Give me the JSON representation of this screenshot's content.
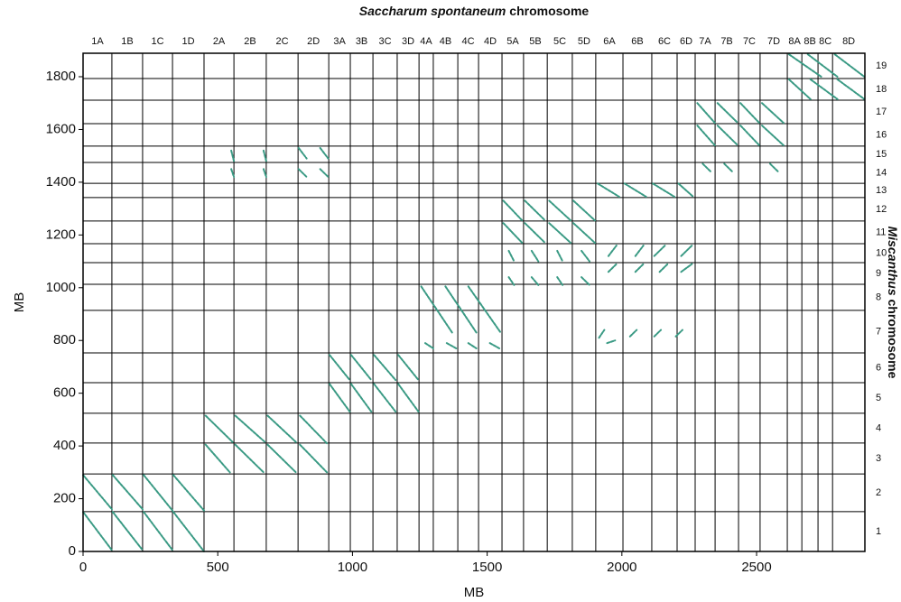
{
  "chart_data": {
    "type": "dotplot",
    "title": [
      "Saccharum spontaneum",
      "chromosome"
    ],
    "right_title": [
      "Miscanthus",
      "chromosome"
    ],
    "xlabel": "MB",
    "ylabel": "MB",
    "xlim": [
      0,
      2902
    ],
    "ylim": [
      0,
      1889
    ],
    "xticks": [
      0,
      500,
      1000,
      1500,
      2000,
      2500
    ],
    "yticks": [
      0,
      200,
      400,
      600,
      800,
      1000,
      1200,
      1400,
      1600,
      1800
    ],
    "color": "#3a9a84",
    "top_categories": [
      "1A",
      "1B",
      "1C",
      "1D",
      "2A",
      "2B",
      "2C",
      "2D",
      "3A",
      "3B",
      "3C",
      "3D",
      "4A",
      "4B",
      "4C",
      "4D",
      "5A",
      "5B",
      "5C",
      "5D",
      "6A",
      "6B",
      "6C",
      "6D",
      "7A",
      "7B",
      "7C",
      "7D",
      "8A",
      "8B",
      "8C",
      "8D"
    ],
    "top_boundaries": [
      0,
      107,
      221,
      332,
      449,
      560,
      680,
      798,
      912,
      992,
      1076,
      1166,
      1247,
      1300,
      1391,
      1468,
      1555,
      1635,
      1723,
      1816,
      1903,
      2004,
      2111,
      2205,
      2272,
      2346,
      2433,
      2513,
      2614,
      2668,
      2728,
      2782,
      2902
    ],
    "right_categories": [
      "1",
      "2",
      "3",
      "4",
      "5",
      "6",
      "7",
      "8",
      "9",
      "10",
      "11",
      "12",
      "13",
      "14",
      "15",
      "16",
      "17",
      "18",
      "19"
    ],
    "right_boundaries": [
      0,
      151,
      294,
      411,
      524,
      640,
      753,
      914,
      1013,
      1095,
      1167,
      1253,
      1342,
      1396,
      1475,
      1537,
      1622,
      1711,
      1793,
      1889
    ],
    "segments": [
      {
        "x": [
          0,
          107
        ],
        "y": [
          290,
          160
        ]
      },
      {
        "x": [
          0,
          107
        ],
        "y": [
          150,
          5
        ]
      },
      {
        "x": [
          110,
          221
        ],
        "y": [
          290,
          160
        ]
      },
      {
        "x": [
          110,
          221
        ],
        "y": [
          150,
          5
        ]
      },
      {
        "x": [
          225,
          332
        ],
        "y": [
          290,
          155
        ]
      },
      {
        "x": [
          225,
          332
        ],
        "y": [
          150,
          5
        ]
      },
      {
        "x": [
          335,
          449
        ],
        "y": [
          290,
          155
        ]
      },
      {
        "x": [
          335,
          449
        ],
        "y": [
          150,
          0
        ]
      },
      {
        "x": [
          455,
          555
        ],
        "y": [
          515,
          415
        ]
      },
      {
        "x": [
          455,
          545
        ],
        "y": [
          405,
          300
        ]
      },
      {
        "x": [
          565,
          675
        ],
        "y": [
          515,
          415
        ]
      },
      {
        "x": [
          565,
          670
        ],
        "y": [
          405,
          300
        ]
      },
      {
        "x": [
          685,
          790
        ],
        "y": [
          515,
          415
        ]
      },
      {
        "x": [
          685,
          790
        ],
        "y": [
          405,
          300
        ]
      },
      {
        "x": [
          805,
          905
        ],
        "y": [
          515,
          410
        ]
      },
      {
        "x": [
          805,
          905
        ],
        "y": [
          405,
          300
        ]
      },
      {
        "x": [
          915,
          990
        ],
        "y": [
          745,
          650
        ]
      },
      {
        "x": [
          915,
          990
        ],
        "y": [
          635,
          530
        ]
      },
      {
        "x": [
          995,
          1070
        ],
        "y": [
          745,
          650
        ]
      },
      {
        "x": [
          995,
          1070
        ],
        "y": [
          635,
          530
        ]
      },
      {
        "x": [
          1080,
          1160
        ],
        "y": [
          745,
          650
        ]
      },
      {
        "x": [
          1080,
          1160
        ],
        "y": [
          635,
          530
        ]
      },
      {
        "x": [
          1170,
          1245
        ],
        "y": [
          745,
          650
        ]
      },
      {
        "x": [
          1170,
          1245
        ],
        "y": [
          635,
          530
        ]
      },
      {
        "x": [
          1255,
          1370
        ],
        "y": [
          1005,
          830
        ]
      },
      {
        "x": [
          1345,
          1460
        ],
        "y": [
          1005,
          830
        ]
      },
      {
        "x": [
          1430,
          1550
        ],
        "y": [
          1005,
          830
        ]
      },
      {
        "x": [
          1270,
          1300
        ],
        "y": [
          790,
          770
        ]
      },
      {
        "x": [
          1350,
          1385
        ],
        "y": [
          790,
          770
        ]
      },
      {
        "x": [
          1430,
          1460
        ],
        "y": [
          790,
          770
        ]
      },
      {
        "x": [
          1510,
          1545
        ],
        "y": [
          790,
          770
        ]
      },
      {
        "x": [
          1560,
          1630
        ],
        "y": [
          1330,
          1255
        ]
      },
      {
        "x": [
          1560,
          1630
        ],
        "y": [
          1245,
          1170
        ]
      },
      {
        "x": [
          1640,
          1715
        ],
        "y": [
          1330,
          1255
        ]
      },
      {
        "x": [
          1640,
          1715
        ],
        "y": [
          1245,
          1170
        ]
      },
      {
        "x": [
          1730,
          1810
        ],
        "y": [
          1330,
          1255
        ]
      },
      {
        "x": [
          1730,
          1810
        ],
        "y": [
          1245,
          1170
        ]
      },
      {
        "x": [
          1820,
          1900
        ],
        "y": [
          1330,
          1255
        ]
      },
      {
        "x": [
          1820,
          1900
        ],
        "y": [
          1245,
          1170
        ]
      },
      {
        "x": [
          1580,
          1600
        ],
        "y": [
          1140,
          1100
        ]
      },
      {
        "x": [
          1580,
          1600
        ],
        "y": [
          1040,
          1010
        ]
      },
      {
        "x": [
          1665,
          1690
        ],
        "y": [
          1140,
          1100
        ]
      },
      {
        "x": [
          1665,
          1690
        ],
        "y": [
          1040,
          1010
        ]
      },
      {
        "x": [
          1760,
          1780
        ],
        "y": [
          1140,
          1100
        ]
      },
      {
        "x": [
          1760,
          1780
        ],
        "y": [
          1040,
          1010
        ]
      },
      {
        "x": [
          1850,
          1880
        ],
        "y": [
          1140,
          1100
        ]
      },
      {
        "x": [
          1850,
          1880
        ],
        "y": [
          1040,
          1010
        ]
      },
      {
        "x": [
          1910,
          1990
        ],
        "y": [
          1395,
          1345
        ]
      },
      {
        "x": [
          2010,
          2090
        ],
        "y": [
          1395,
          1345
        ]
      },
      {
        "x": [
          2115,
          2195
        ],
        "y": [
          1395,
          1345
        ]
      },
      {
        "x": [
          2210,
          2265
        ],
        "y": [
          1395,
          1345
        ]
      },
      {
        "x": [
          1950,
          1980
        ],
        "y": [
          1120,
          1160
        ]
      },
      {
        "x": [
          2050,
          2080
        ],
        "y": [
          1120,
          1160
        ]
      },
      {
        "x": [
          2120,
          2160
        ],
        "y": [
          1120,
          1160
        ]
      },
      {
        "x": [
          2220,
          2260
        ],
        "y": [
          1120,
          1160
        ]
      },
      {
        "x": [
          1950,
          1980
        ],
        "y": [
          1060,
          1090
        ]
      },
      {
        "x": [
          2050,
          2080
        ],
        "y": [
          1060,
          1090
        ]
      },
      {
        "x": [
          2140,
          2170
        ],
        "y": [
          1060,
          1090
        ]
      },
      {
        "x": [
          2220,
          2260
        ],
        "y": [
          1060,
          1090
        ]
      },
      {
        "x": [
          1915,
          1935
        ],
        "y": [
          810,
          840
        ]
      },
      {
        "x": [
          1945,
          1975
        ],
        "y": [
          790,
          800
        ]
      },
      {
        "x": [
          2030,
          2055
        ],
        "y": [
          815,
          840
        ]
      },
      {
        "x": [
          2120,
          2145
        ],
        "y": [
          815,
          840
        ]
      },
      {
        "x": [
          2200,
          2225
        ],
        "y": [
          815,
          840
        ]
      },
      {
        "x": [
          2280,
          2345
        ],
        "y": [
          1700,
          1625
        ]
      },
      {
        "x": [
          2280,
          2345
        ],
        "y": [
          1615,
          1540
        ]
      },
      {
        "x": [
          2355,
          2430
        ],
        "y": [
          1700,
          1625
        ]
      },
      {
        "x": [
          2355,
          2430
        ],
        "y": [
          1615,
          1540
        ]
      },
      {
        "x": [
          2440,
          2510
        ],
        "y": [
          1700,
          1625
        ]
      },
      {
        "x": [
          2440,
          2510
        ],
        "y": [
          1615,
          1540
        ]
      },
      {
        "x": [
          2520,
          2600
        ],
        "y": [
          1700,
          1625
        ]
      },
      {
        "x": [
          2520,
          2600
        ],
        "y": [
          1615,
          1540
        ]
      },
      {
        "x": [
          2300,
          2330
        ],
        "y": [
          1470,
          1440
        ]
      },
      {
        "x": [
          2380,
          2410
        ],
        "y": [
          1470,
          1440
        ]
      },
      {
        "x": [
          2550,
          2580
        ],
        "y": [
          1470,
          1440
        ]
      },
      {
        "x": [
          2620,
          2740
        ],
        "y": [
          1885,
          1800
        ]
      },
      {
        "x": [
          2690,
          2800
        ],
        "y": [
          1885,
          1800
        ]
      },
      {
        "x": [
          2790,
          2900
        ],
        "y": [
          1885,
          1800
        ]
      },
      {
        "x": [
          2620,
          2700
        ],
        "y": [
          1790,
          1715
        ]
      },
      {
        "x": [
          2700,
          2800
        ],
        "y": [
          1790,
          1715
        ]
      },
      {
        "x": [
          2800,
          2900
        ],
        "y": [
          1790,
          1715
        ]
      },
      {
        "x": [
          550,
          560
        ],
        "y": [
          1520,
          1480
        ]
      },
      {
        "x": [
          550,
          560
        ],
        "y": [
          1450,
          1420
        ]
      },
      {
        "x": [
          670,
          680
        ],
        "y": [
          1520,
          1480
        ]
      },
      {
        "x": [
          670,
          680
        ],
        "y": [
          1450,
          1420
        ]
      },
      {
        "x": [
          800,
          830
        ],
        "y": [
          1530,
          1490
        ]
      },
      {
        "x": [
          800,
          830
        ],
        "y": [
          1450,
          1420
        ]
      },
      {
        "x": [
          880,
          910
        ],
        "y": [
          1530,
          1490
        ]
      },
      {
        "x": [
          880,
          910
        ],
        "y": [
          1450,
          1420
        ]
      }
    ]
  }
}
